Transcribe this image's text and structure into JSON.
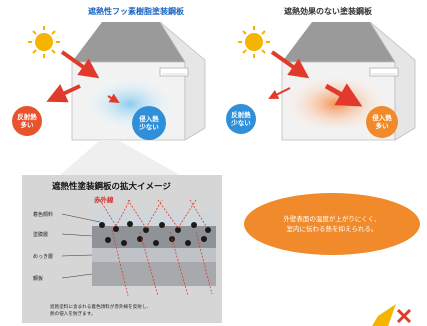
{
  "titles": {
    "left": "遮熱性フッ素樹脂塗装鋼板",
    "right": "遮熱効果のない塗装鋼板"
  },
  "left_house": {
    "reflect_label": "反射熱\n多い",
    "inflow_label": "侵入熱\n少ない"
  },
  "right_house": {
    "reflect_label": "反射熱\n少ない",
    "inflow_label": "侵入熱\n多い"
  },
  "zoom_panel": {
    "title": "遮熱性塗装鋼板の拡大イメージ",
    "infrared_label": "赤外線",
    "layers": [
      "着色顔料",
      "塗膜層",
      "めっき層",
      "鋼板"
    ],
    "caption": "遮熱塗料に含まれる着色顔料が赤外線を反射し、\n熱の侵入を防ぎます。"
  },
  "effect_text": "外壁表面の温度が上がりにくく、\n室内に伝わる熱を抑えられる。",
  "colors": {
    "sun": "#f5b400",
    "reflect_bubble": "#e8532e",
    "inflow_bubble_left": "#2f8fd8",
    "inflow_bubble_right": "#f08a2a",
    "cool_glow": "#a8d8f2",
    "warm_glow": "#f6a46a",
    "arrow_red": "#e23a2a"
  }
}
